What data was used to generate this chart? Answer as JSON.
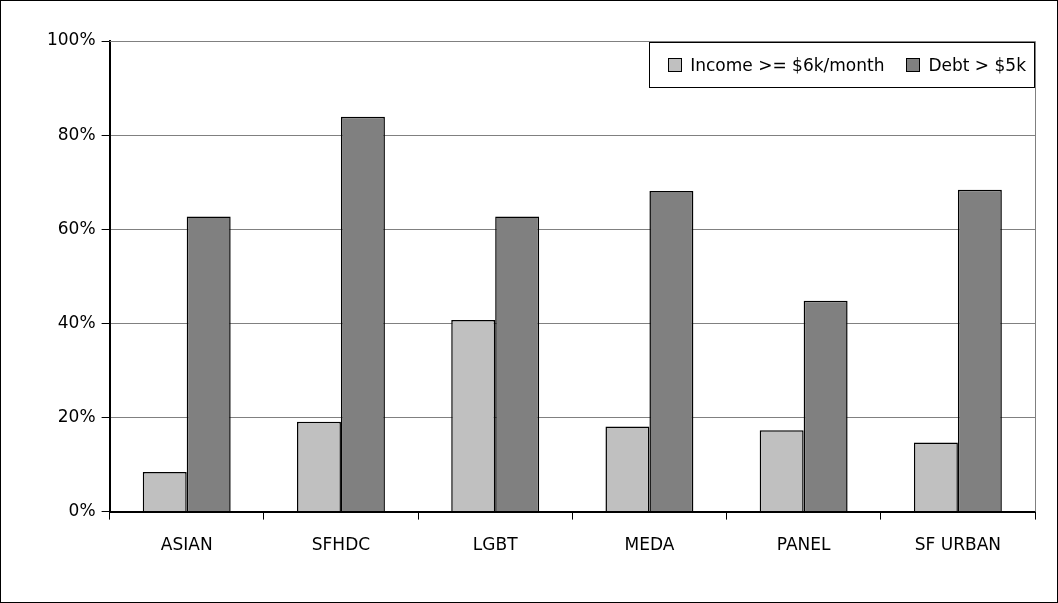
{
  "chart_data": {
    "type": "bar",
    "categories": [
      "ASIAN",
      "SFHDC",
      "LGBT",
      "MEDA",
      "PANEL",
      "SF URBAN"
    ],
    "series": [
      {
        "name": "Income >= $6k/month",
        "color": "#c0c0c0",
        "values": [
          8.4,
          19.1,
          40.7,
          18.1,
          17.3,
          14.7
        ]
      },
      {
        "name": "Debt > $5k",
        "color": "#808080",
        "values": [
          62.7,
          83.9,
          62.7,
          68.1,
          44.8,
          68.4
        ]
      }
    ],
    "ylim": [
      0,
      100
    ],
    "yticks": [
      {
        "value": 0,
        "label": "0%"
      },
      {
        "value": 20,
        "label": "20%"
      },
      {
        "value": 40,
        "label": "40%"
      },
      {
        "value": 60,
        "label": "60%"
      },
      {
        "value": 80,
        "label": "80%"
      },
      {
        "value": 100,
        "label": "100%"
      }
    ],
    "grid": "y",
    "legend": "top right"
  }
}
